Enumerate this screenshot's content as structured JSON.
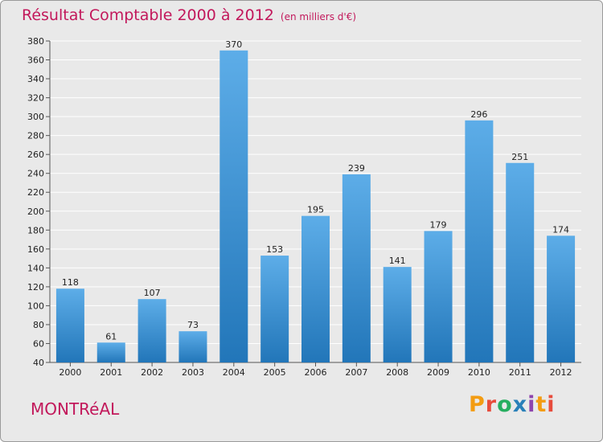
{
  "chart_data": {
    "type": "bar",
    "title": "Résultat Comptable 2000 à 2012",
    "subtitle": "(en milliers d'€)",
    "categories": [
      "2000",
      "2001",
      "2002",
      "2003",
      "2004",
      "2005",
      "2006",
      "2007",
      "2008",
      "2009",
      "2010",
      "2011",
      "2012"
    ],
    "values": [
      118,
      61,
      107,
      73,
      370,
      153,
      195,
      239,
      141,
      179,
      296,
      251,
      174
    ],
    "ylim": [
      40,
      380
    ],
    "yticks": [
      40,
      60,
      80,
      100,
      120,
      140,
      160,
      180,
      200,
      220,
      240,
      260,
      280,
      300,
      320,
      340,
      360,
      380
    ],
    "grid": true,
    "xlabel": "",
    "ylabel": ""
  },
  "location": "MONTRéAL",
  "logo": {
    "letters": [
      "P",
      "r",
      "o",
      "x",
      "i",
      "t",
      "i"
    ]
  },
  "colors": {
    "title": "#c2185b",
    "bar_top": "#5dade8",
    "bar_bottom": "#2276b9",
    "background": "#e9e9e9",
    "grid": "#ffffff"
  }
}
